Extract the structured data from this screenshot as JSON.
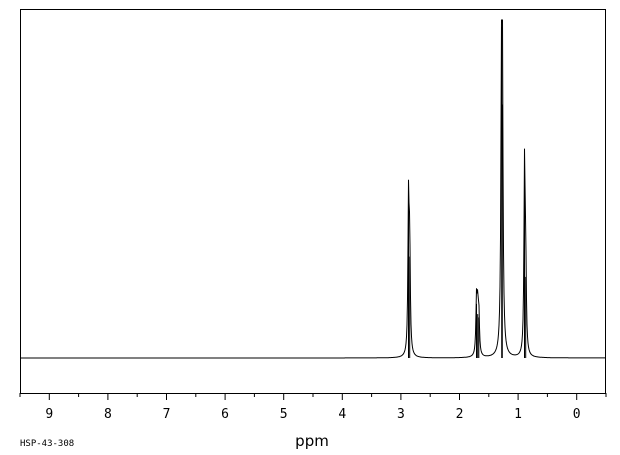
{
  "chart_data": {
    "type": "line",
    "title": "",
    "xlabel": "ppm",
    "ylabel": "",
    "xlim": [
      9.5,
      -0.5
    ],
    "x_reversed": true,
    "grid": false,
    "legend": "none",
    "x_ticks": [
      "9",
      "8",
      "7",
      "6",
      "5",
      "4",
      "3",
      "2",
      "1",
      "0"
    ],
    "spectrum_id": "HSP-43-308",
    "line_color": "#000000",
    "series": [
      {
        "name": "",
        "peaks": [
          {
            "ppm": 2.87,
            "height": 0.45
          },
          {
            "ppm": 2.85,
            "height": 0.3
          },
          {
            "ppm": 1.71,
            "height": 0.16
          },
          {
            "ppm": 1.69,
            "height": 0.13
          },
          {
            "ppm": 1.67,
            "height": 0.12
          },
          {
            "ppm": 1.28,
            "height": 0.98
          },
          {
            "ppm": 1.27,
            "height": 0.75
          },
          {
            "ppm": 0.89,
            "height": 0.56
          },
          {
            "ppm": 0.87,
            "height": 0.24
          }
        ]
      }
    ]
  }
}
